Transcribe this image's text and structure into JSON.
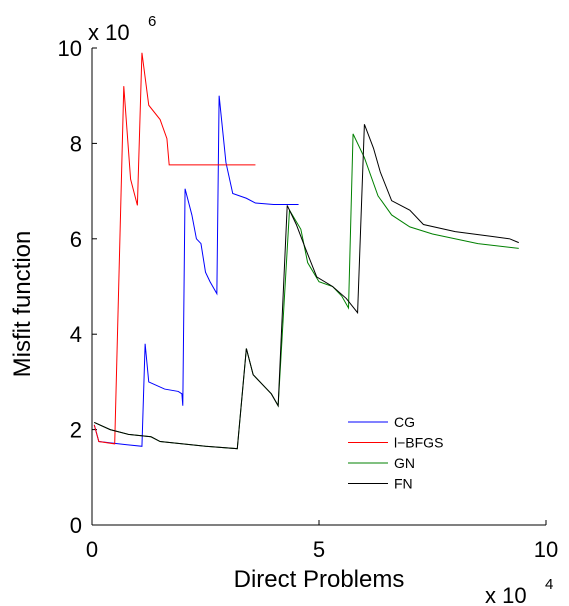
{
  "chart_data": {
    "type": "line",
    "xlabel": "Direct Problems",
    "ylabel": "Misfit function",
    "x_multiplier": {
      "base": "x 10",
      "exponent": "4"
    },
    "y_multiplier": {
      "base": "x 10",
      "exponent": "6"
    },
    "xlim": [
      0,
      10
    ],
    "ylim": [
      0,
      10
    ],
    "xticks": [
      0,
      5,
      10
    ],
    "yticks": [
      0,
      2,
      4,
      6,
      8,
      10
    ],
    "grid": false,
    "legend": "lower-right",
    "series": [
      {
        "name": "CG",
        "color": "#0000ff",
        "x": [
          0.05,
          0.15,
          0.6,
          1.1,
          1.17,
          1.25,
          1.6,
          1.9,
          1.98,
          2.0,
          2.05,
          2.2,
          2.3,
          2.4,
          2.5,
          2.6,
          2.75,
          2.8,
          2.95,
          3.1,
          3.4,
          3.6,
          4.0,
          4.55
        ],
        "values": [
          2.1,
          1.75,
          1.7,
          1.65,
          3.8,
          3.0,
          2.85,
          2.8,
          2.75,
          2.5,
          7.05,
          6.5,
          6.0,
          5.9,
          5.3,
          5.1,
          4.85,
          9.0,
          7.6,
          6.95,
          6.85,
          6.75,
          6.72,
          6.72
        ]
      },
      {
        "name": "l−BFGS",
        "color": "#ff0000",
        "x": [
          0.05,
          0.15,
          0.5,
          0.7,
          0.85,
          1.0,
          1.1,
          1.25,
          1.5,
          1.65,
          1.7,
          3.6
        ],
        "values": [
          2.1,
          1.75,
          1.7,
          9.2,
          7.25,
          6.7,
          9.9,
          8.8,
          8.5,
          8.1,
          7.55,
          7.55
        ]
      },
      {
        "name": "GN",
        "color": "#008000",
        "x": [
          0.05,
          0.4,
          0.8,
          1.3,
          1.5,
          2.0,
          2.5,
          3.2,
          3.4,
          3.55,
          3.8,
          3.95,
          4.1,
          4.35,
          4.6,
          4.75,
          5.0,
          5.3,
          5.5,
          5.65,
          5.75,
          6.0,
          6.3,
          6.6,
          7.0,
          7.5,
          8.5,
          9.4
        ],
        "values": [
          2.15,
          2.0,
          1.9,
          1.85,
          1.75,
          1.7,
          1.65,
          1.6,
          3.7,
          3.15,
          2.9,
          2.75,
          2.5,
          6.6,
          6.2,
          5.5,
          5.1,
          5.0,
          4.8,
          4.55,
          8.2,
          7.7,
          6.9,
          6.5,
          6.25,
          6.1,
          5.9,
          5.8
        ]
      },
      {
        "name": "FN",
        "color": "#000000",
        "x": [
          0.05,
          0.4,
          0.8,
          1.3,
          1.5,
          2.0,
          2.5,
          3.2,
          3.4,
          3.55,
          3.8,
          3.95,
          4.1,
          4.3,
          4.5,
          4.7,
          4.95,
          5.3,
          5.6,
          5.85,
          6.0,
          6.2,
          6.35,
          6.6,
          7.0,
          7.3,
          8.0,
          8.8,
          9.2,
          9.4
        ],
        "values": [
          2.15,
          2.0,
          1.9,
          1.85,
          1.75,
          1.7,
          1.65,
          1.6,
          3.7,
          3.15,
          2.9,
          2.75,
          2.5,
          6.7,
          6.3,
          5.8,
          5.2,
          5.0,
          4.75,
          4.45,
          8.4,
          7.9,
          7.4,
          6.8,
          6.6,
          6.3,
          6.15,
          6.05,
          6.0,
          5.92
        ]
      }
    ]
  }
}
